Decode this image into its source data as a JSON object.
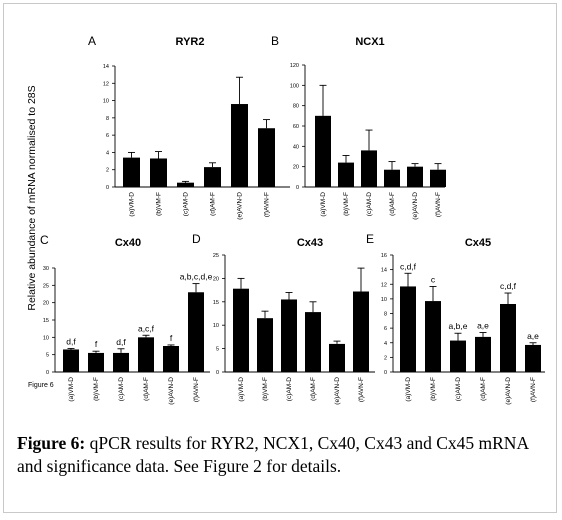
{
  "y_axis_label": "Relative abundance of mRNA normalised to 28S",
  "figure_tag": "Figure 6",
  "caption": {
    "label": "Figure 6:",
    "text": " qPCR results for RYR2, NCX1, Cx40, Cx43 and Cx45 mRNA and significance data. See Figure 2 for details."
  },
  "chart_data": [
    {
      "type": "bar",
      "panel": "A",
      "title": "RYR2",
      "categories": [
        "(a)VM-D",
        "(b)VM-F",
        "(c)AM-D",
        "(d)AM-F",
        "(e)AVN-D",
        "(f)AVN-F"
      ],
      "values": [
        3.4,
        3.3,
        0.5,
        2.3,
        9.6,
        6.8
      ],
      "errors": [
        0.6,
        0.8,
        0.15,
        0.5,
        3.1,
        1.0
      ],
      "ylim": [
        0,
        14
      ],
      "yticks": [
        0,
        2,
        4,
        6,
        8,
        10,
        12,
        14
      ],
      "labels": [
        "",
        "",
        "",
        "",
        "",
        ""
      ]
    },
    {
      "type": "bar",
      "panel": "B",
      "title": "NCX1",
      "categories": [
        "(a)VM-D",
        "(b)VM-F",
        "(c)AM-D",
        "(d)AM-F",
        "(e)AVN-D",
        "(f)AVN-F"
      ],
      "values": [
        70,
        24,
        36,
        17,
        20,
        17
      ],
      "errors": [
        30,
        7,
        20,
        8,
        3,
        6
      ],
      "ylim": [
        0,
        120
      ],
      "yticks": [
        0,
        20,
        40,
        60,
        80,
        100,
        120
      ],
      "labels": [
        "",
        "",
        "",
        "",
        "",
        ""
      ]
    },
    {
      "type": "bar",
      "panel": "C",
      "title": "Cx40",
      "categories": [
        "(a)VM-D",
        "(b)VM-F",
        "(c)AM-D",
        "(d)AM-F",
        "(e)AVN-D",
        "(f)AVN-F"
      ],
      "values": [
        6.5,
        5.5,
        5.5,
        10,
        7.5,
        23
      ],
      "errors": [
        0.3,
        0.5,
        1.2,
        0.6,
        0.3,
        2.5
      ],
      "ylim": [
        0,
        30
      ],
      "yticks": [
        0,
        5,
        10,
        15,
        20,
        25,
        30
      ],
      "labels": [
        "d,f",
        "f",
        "d,f",
        "a,c,f",
        "f",
        "a,b,c,d,e"
      ]
    },
    {
      "type": "bar",
      "panel": "D",
      "title": "Cx43",
      "categories": [
        "(a)VM-D",
        "(b)VM-F",
        "(c)AM-D",
        "(d)AM-F",
        "(e)AVN-D",
        "(f)AVN-F"
      ],
      "values": [
        17.8,
        11.5,
        15.5,
        12.8,
        6,
        17.2
      ],
      "errors": [
        2.2,
        1.5,
        1.5,
        2.2,
        0.6,
        5
      ],
      "ylim": [
        0,
        25
      ],
      "yticks": [
        0,
        5,
        10,
        15,
        20,
        25
      ],
      "labels": [
        "",
        "",
        "",
        "",
        "",
        ""
      ]
    },
    {
      "type": "bar",
      "panel": "E",
      "title": "Cx45",
      "categories": [
        "(a)VM-D",
        "(b)VM-F",
        "(c)AM-D",
        "(d)AM-F",
        "(e)AVN-D",
        "(f)AVN-F"
      ],
      "values": [
        11.7,
        9.7,
        4.3,
        4.8,
        9.3,
        3.7
      ],
      "errors": [
        1.8,
        2.0,
        1.0,
        0.6,
        1.5,
        0.3
      ],
      "ylim": [
        0,
        16
      ],
      "yticks": [
        0,
        2,
        4,
        6,
        8,
        10,
        12,
        14,
        16
      ],
      "labels": [
        "c,d,f",
        "c",
        "a,b,e",
        "a,e",
        "c,d,f",
        "a,e"
      ]
    }
  ]
}
